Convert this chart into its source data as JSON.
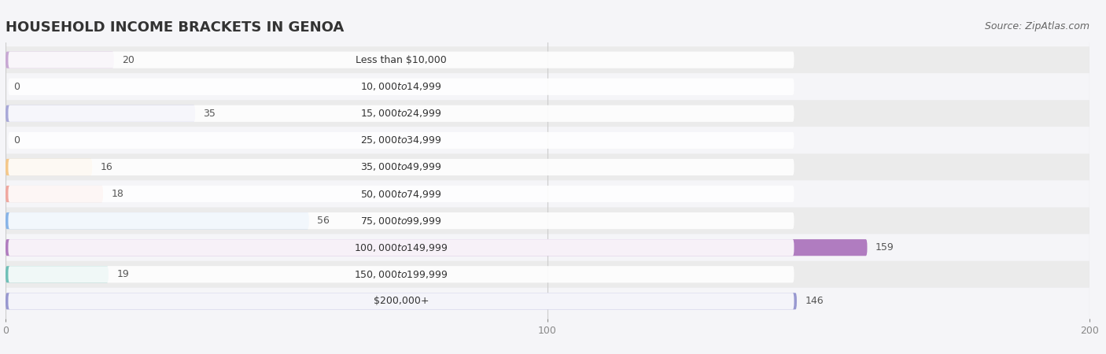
{
  "title": "HOUSEHOLD INCOME BRACKETS IN GENOA",
  "source": "Source: ZipAtlas.com",
  "categories": [
    "Less than $10,000",
    "$10,000 to $14,999",
    "$15,000 to $24,999",
    "$25,000 to $34,999",
    "$35,000 to $49,999",
    "$50,000 to $74,999",
    "$75,000 to $99,999",
    "$100,000 to $149,999",
    "$150,000 to $199,999",
    "$200,000+"
  ],
  "values": [
    20,
    0,
    35,
    0,
    16,
    18,
    56,
    159,
    19,
    146
  ],
  "bar_colors": [
    "#c8a8d4",
    "#7dcec8",
    "#a8a8d8",
    "#f0a0b8",
    "#f5c88a",
    "#f0a8a0",
    "#88b4e8",
    "#b07cc0",
    "#70c0b8",
    "#9898d0"
  ],
  "row_even_color": "#ebebeb",
  "row_odd_color": "#f5f5f8",
  "bg_color": "#f5f5f8",
  "xlim_max": 200,
  "xticks": [
    0,
    100,
    200
  ],
  "title_fontsize": 13,
  "label_fontsize": 9,
  "value_fontsize": 9,
  "source_fontsize": 9
}
